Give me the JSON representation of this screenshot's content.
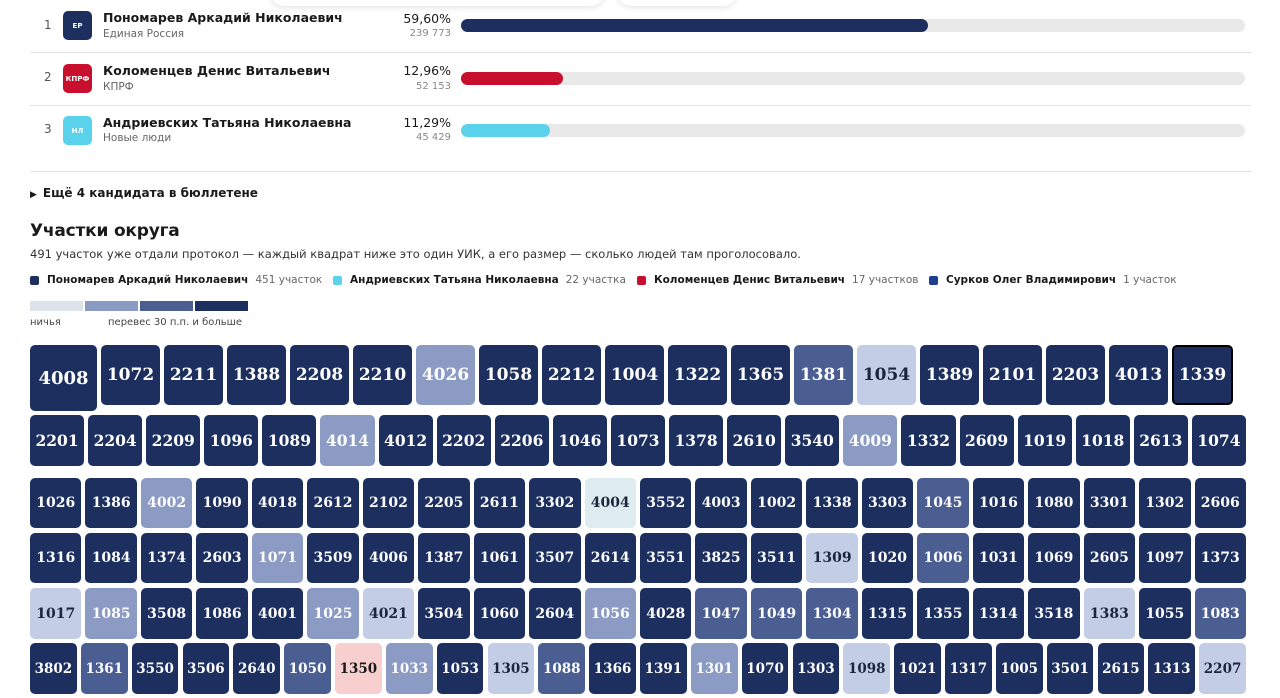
{
  "candidates": [
    {
      "rank": "1",
      "name": "Пономарев Аркадий Николаевич",
      "party": "Единая Россия",
      "logo": "ЕР",
      "logo_color": "#1c2f5e",
      "percent": "59,60%",
      "votes": "239 773",
      "share": 0.596,
      "bar_color": "#1c2f5e"
    },
    {
      "rank": "2",
      "name": "Коломенцев Денис Витальевич",
      "party": "КПРФ",
      "logo": "КПРФ",
      "logo_color": "#c8102e",
      "percent": "12,96%",
      "votes": "52 153",
      "share": 0.1296,
      "bar_color": "#c8102e"
    },
    {
      "rank": "3",
      "name": "Андриевских Татьяна Николаевна",
      "party": "Новые люди",
      "logo": "НЛ",
      "logo_color": "#5bd2ec",
      "percent": "11,29%",
      "votes": "45 429",
      "share": 0.1129,
      "bar_color": "#5bd2ec"
    }
  ],
  "more_candidates": "Ещё 4 кандидата в бюллетене",
  "section": {
    "title": "Участки округа",
    "description": "491 участок уже отдали протокол — каждый квадрат ниже это один УИК, а его размер — сколько людей там проголосовало."
  },
  "legend": [
    {
      "name": "Пономарев Аркадий Николаевич",
      "count": "451 участок",
      "color": "#1c2f5e"
    },
    {
      "name": "Андриевских Татьяна Николаевна",
      "count": "22 участка",
      "color": "#5bd2ec"
    },
    {
      "name": "Коломенцев Денис Витальевич",
      "count": "17 участков",
      "color": "#c8102e"
    },
    {
      "name": "Сурков Олег Владимирович",
      "count": "1 участок",
      "color": "#1c3f8e"
    }
  ],
  "scale": {
    "low_label": "ничья",
    "high_label": "перевес 30 п.п. и больше",
    "colors": [
      "#dde3eb",
      "#8c9bc4",
      "#4b5e92",
      "#1c2f5e"
    ]
  },
  "precinct_rows": [
    [
      [
        "4008",
        "dark"
      ],
      [
        "1072",
        "dark"
      ],
      [
        "2211",
        "dark"
      ],
      [
        "1388",
        "dark"
      ],
      [
        "2208",
        "dark"
      ],
      [
        "2210",
        "dark"
      ],
      [
        "4026",
        "light"
      ],
      [
        "1058",
        "dark"
      ],
      [
        "2212",
        "dark"
      ],
      [
        "1004",
        "dark"
      ],
      [
        "1322",
        "dark"
      ],
      [
        "1365",
        "dark"
      ],
      [
        "1381",
        "mid"
      ],
      [
        "1054",
        "pale"
      ],
      [
        "1389",
        "dark"
      ],
      [
        "2101",
        "dark"
      ],
      [
        "2203",
        "dark"
      ],
      [
        "4013",
        "dark"
      ],
      [
        "1339",
        "dark"
      ]
    ],
    [
      [
        "2201",
        "dark"
      ],
      [
        "2204",
        "dark"
      ],
      [
        "2209",
        "dark"
      ],
      [
        "1096",
        "dark"
      ],
      [
        "1089",
        "dark"
      ],
      [
        "4014",
        "light"
      ],
      [
        "4012",
        "dark"
      ],
      [
        "2202",
        "dark"
      ],
      [
        "2206",
        "dark"
      ],
      [
        "1046",
        "dark"
      ],
      [
        "1073",
        "dark"
      ],
      [
        "1378",
        "dark"
      ],
      [
        "2610",
        "dark"
      ],
      [
        "3540",
        "dark"
      ],
      [
        "4009",
        "light"
      ],
      [
        "1332",
        "dark"
      ],
      [
        "2609",
        "dark"
      ],
      [
        "1019",
        "dark"
      ],
      [
        "1018",
        "dark"
      ],
      [
        "2613",
        "dark"
      ],
      [
        "1074",
        "dark"
      ]
    ],
    [
      [
        "1026",
        "dark"
      ],
      [
        "1386",
        "dark"
      ],
      [
        "4002",
        "light"
      ],
      [
        "1090",
        "dark"
      ],
      [
        "4018",
        "dark"
      ],
      [
        "2612",
        "dark"
      ],
      [
        "2102",
        "dark"
      ],
      [
        "2205",
        "dark"
      ],
      [
        "2611",
        "dark"
      ],
      [
        "3302",
        "dark"
      ],
      [
        "4004",
        "tie"
      ],
      [
        "3552",
        "dark"
      ],
      [
        "4003",
        "dark"
      ],
      [
        "1002",
        "dark"
      ],
      [
        "1338",
        "dark"
      ],
      [
        "3303",
        "dark"
      ],
      [
        "1045",
        "mid"
      ],
      [
        "1016",
        "dark"
      ],
      [
        "1080",
        "dark"
      ],
      [
        "3301",
        "dark"
      ],
      [
        "1302",
        "dark"
      ],
      [
        "2606",
        "dark"
      ]
    ],
    [
      [
        "1316",
        "dark"
      ],
      [
        "1084",
        "dark"
      ],
      [
        "1374",
        "dark"
      ],
      [
        "2603",
        "dark"
      ],
      [
        "1071",
        "light"
      ],
      [
        "3509",
        "dark"
      ],
      [
        "4006",
        "dark"
      ],
      [
        "1387",
        "dark"
      ],
      [
        "1061",
        "dark"
      ],
      [
        "3507",
        "dark"
      ],
      [
        "2614",
        "dark"
      ],
      [
        "3551",
        "dark"
      ],
      [
        "3825",
        "dark"
      ],
      [
        "3511",
        "dark"
      ],
      [
        "1309",
        "pale"
      ],
      [
        "1020",
        "dark"
      ],
      [
        "1006",
        "mid"
      ],
      [
        "1031",
        "dark"
      ],
      [
        "1069",
        "dark"
      ],
      [
        "2605",
        "dark"
      ],
      [
        "1097",
        "dark"
      ],
      [
        "1373",
        "dark"
      ]
    ],
    [
      [
        "1017",
        "pale"
      ],
      [
        "1085",
        "light"
      ],
      [
        "3508",
        "dark"
      ],
      [
        "1086",
        "dark"
      ],
      [
        "4001",
        "dark"
      ],
      [
        "1025",
        "light"
      ],
      [
        "4021",
        "pale"
      ],
      [
        "3504",
        "dark"
      ],
      [
        "1060",
        "dark"
      ],
      [
        "2604",
        "dark"
      ],
      [
        "1056",
        "light"
      ],
      [
        "4028",
        "dark"
      ],
      [
        "1047",
        "mid"
      ],
      [
        "1049",
        "mid"
      ],
      [
        "1304",
        "mid"
      ],
      [
        "1315",
        "dark"
      ],
      [
        "1355",
        "dark"
      ],
      [
        "1314",
        "dark"
      ],
      [
        "3518",
        "dark"
      ],
      [
        "1383",
        "pale"
      ],
      [
        "1055",
        "dark"
      ],
      [
        "1083",
        "mid"
      ]
    ],
    [
      [
        "3802",
        "dark"
      ],
      [
        "1361",
        "mid"
      ],
      [
        "3550",
        "dark"
      ],
      [
        "3506",
        "dark"
      ],
      [
        "2640",
        "dark"
      ],
      [
        "1050",
        "mid"
      ],
      [
        "1350",
        "red"
      ],
      [
        "1033",
        "light"
      ],
      [
        "1053",
        "dark"
      ],
      [
        "1305",
        "pale"
      ],
      [
        "1088",
        "mid"
      ],
      [
        "1366",
        "dark"
      ],
      [
        "1391",
        "dark"
      ],
      [
        "1301",
        "light"
      ],
      [
        "1070",
        "dark"
      ],
      [
        "1303",
        "dark"
      ],
      [
        "1098",
        "pale"
      ],
      [
        "1021",
        "dark"
      ],
      [
        "1317",
        "dark"
      ],
      [
        "1005",
        "dark"
      ],
      [
        "3501",
        "dark"
      ],
      [
        "2615",
        "dark"
      ],
      [
        "1313",
        "dark"
      ],
      [
        "2207",
        "pale"
      ]
    ]
  ]
}
